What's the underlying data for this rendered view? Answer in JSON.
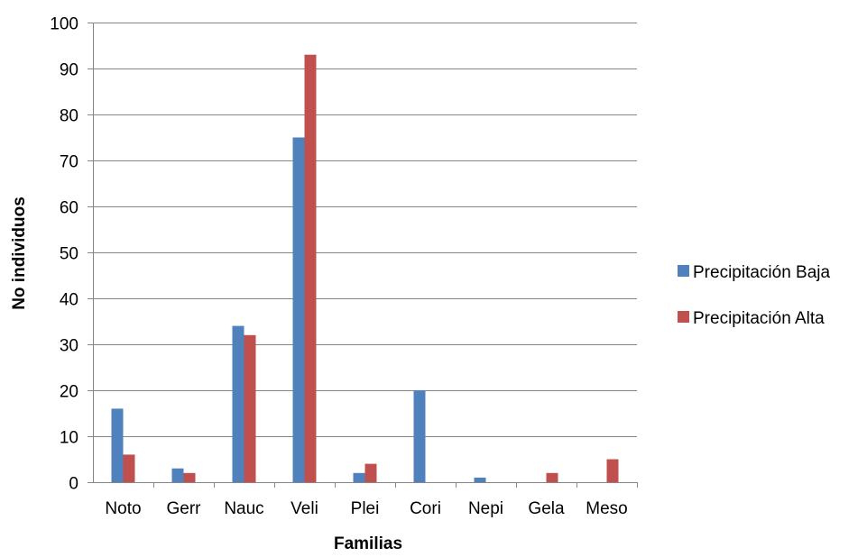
{
  "chart_data": {
    "type": "bar",
    "title": "",
    "xlabel": "Familias",
    "ylabel": "No individuos",
    "categories": [
      "Noto",
      "Gerr",
      "Nauc",
      "Veli",
      "Plei",
      "Cori",
      "Nepi",
      "Gela",
      "Meso"
    ],
    "series": [
      {
        "name": "Precipitación Baja",
        "color": "#4F81BD",
        "values": [
          16,
          3,
          34,
          75,
          2,
          20,
          1,
          0,
          0
        ]
      },
      {
        "name": "Precipitación Alta",
        "color": "#C0504D",
        "values": [
          6,
          2,
          32,
          93,
          4,
          0,
          0,
          2,
          5
        ]
      }
    ],
    "ylim": [
      0,
      100
    ],
    "yticks": [
      0,
      10,
      20,
      30,
      40,
      50,
      60,
      70,
      80,
      90,
      100
    ],
    "grid": true,
    "legend_position": "right"
  }
}
